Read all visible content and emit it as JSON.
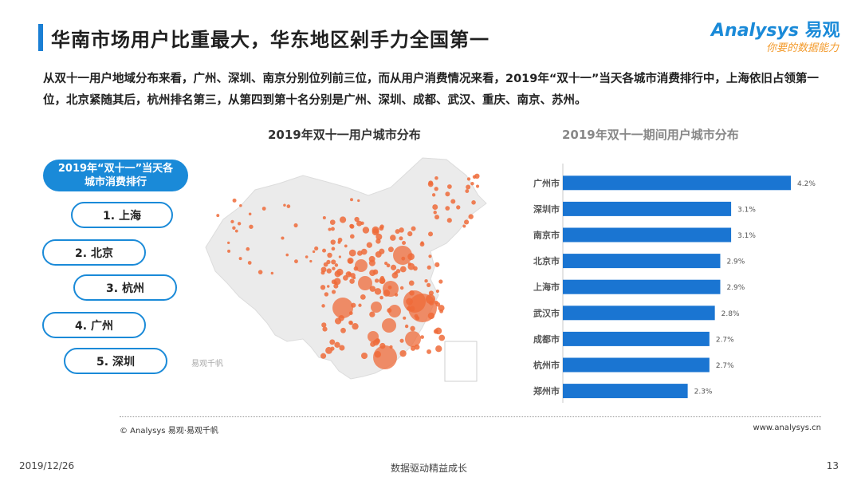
{
  "header": {
    "title": "华南市场用户比重最大，华东地区剁手力全国第一",
    "logo_en": "Analysys",
    "logo_cn": "易观",
    "logo_slogan": "你要的数据能力"
  },
  "description": "从双十一用户地域分布来看，广州、深圳、南京分别位列前三位，而从用户消费情况来看，2019年“双十一”当天各城市消费排行中，上海依旧占领第一位，北京紧随其后，杭州排名第三，从第四到第十名分别是广州、深圳、成都、武汉、重庆、南京、苏州。",
  "map": {
    "title": "2019年双十一用户城市分布",
    "watermark": "易观千帆",
    "bubble_color": "#ef6b3a"
  },
  "ranking": {
    "header": [
      "2019年“双十一”当天各",
      "城市消费排行"
    ],
    "items": [
      "1. 上海",
      "2. 北京",
      "3. 杭州",
      "4. 广州",
      "5. 深圳"
    ]
  },
  "chart_data": {
    "type": "bar",
    "orientation": "horizontal",
    "title": "2019年双十一期间用户城市分布",
    "categories": [
      "广州市",
      "深圳市",
      "南京市",
      "北京市",
      "上海市",
      "武汉市",
      "成都市",
      "杭州市",
      "郑州市"
    ],
    "values": [
      4.2,
      3.1,
      3.1,
      2.9,
      2.9,
      2.8,
      2.7,
      2.7,
      2.3
    ],
    "labels": [
      "4.2%",
      "3.1%",
      "3.1%",
      "2.9%",
      "2.9%",
      "2.8%",
      "2.7%",
      "2.7%",
      "2.3%"
    ],
    "unit": "%",
    "color": "#1a75d2",
    "grid": false
  },
  "footer": {
    "source": "© Analysys 易观·易观千帆",
    "site": "www.analysys.cn",
    "date": "2019/12/26",
    "slogan": "数据驱动精益成长",
    "page": "13"
  }
}
